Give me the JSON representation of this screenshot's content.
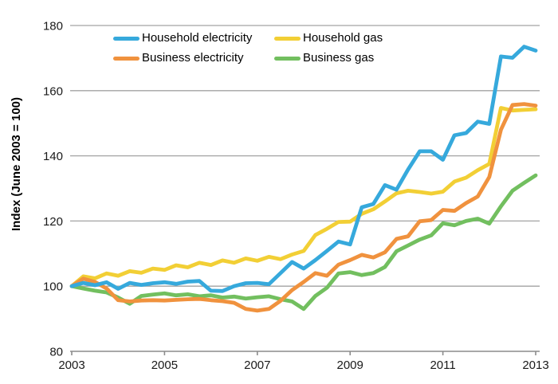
{
  "chart_data": {
    "type": "line",
    "title": "",
    "xlabel": "",
    "ylabel": "Index (June 2003 = 100)",
    "ylim": [
      80,
      180
    ],
    "y_ticks": [
      80,
      100,
      120,
      140,
      160,
      180
    ],
    "x_tick_labels": [
      "2003",
      "2005",
      "2007",
      "2009",
      "2011",
      "2013"
    ],
    "x_tick_years": [
      2003,
      2005,
      2007,
      2009,
      2011,
      2013
    ],
    "x_start_year": 2003,
    "points_per_year": 4,
    "grid": "horizontal",
    "legend_position": "top-left-two-columns",
    "colors": {
      "gridline": "#a3a3a3",
      "axis": "#8c8c8c",
      "text": "#1a1a1a"
    },
    "series": [
      {
        "name": "Household electricity",
        "color": "#36A9DC",
        "values": [
          100,
          101,
          100.3,
          101.2,
          99.2,
          101,
          100.4,
          100.9,
          101.2,
          100.7,
          101.4,
          101.6,
          98.6,
          98.5,
          100,
          100.9,
          101,
          100.6,
          104,
          107.4,
          105.4,
          108,
          110.8,
          113.7,
          112.8,
          124.2,
          125.2,
          131,
          129.6,
          135.8,
          141.4,
          141.4,
          138.8,
          146.3,
          147,
          150.5,
          149.8,
          170.5,
          170.1,
          173.5,
          172.3
        ]
      },
      {
        "name": "Household gas",
        "color": "#F2CF35",
        "values": [
          100,
          103,
          102.4,
          103.9,
          103.2,
          104.6,
          104.1,
          105.4,
          105,
          106.4,
          105.8,
          107.2,
          106.5,
          107.9,
          107.2,
          108.5,
          107.8,
          109,
          108.3,
          109.7,
          110.8,
          115.7,
          117.6,
          119.7,
          119.8,
          122.2,
          123.6,
          126,
          128.5,
          129.3,
          128.9,
          128.4,
          129,
          132.1,
          133.3,
          135.6,
          137.5,
          154.7,
          153.9,
          154.1,
          154.3
        ]
      },
      {
        "name": "Business electricity",
        "color": "#F0923E",
        "values": [
          100,
          102.3,
          101.3,
          99.3,
          95.7,
          95.3,
          95.6,
          95.7,
          95.6,
          95.8,
          96,
          96.1,
          95.7,
          95.4,
          94.9,
          93,
          92.5,
          93,
          95.5,
          98.8,
          101.3,
          104,
          103.2,
          106.6,
          108,
          109.6,
          108.8,
          110.4,
          114.5,
          115.3,
          119.9,
          120.3,
          123.4,
          123.1,
          125.5,
          127.5,
          133.5,
          148,
          155.6,
          155.9,
          155.4
        ]
      },
      {
        "name": "Business gas",
        "color": "#72BF5F",
        "values": [
          100,
          99.3,
          98.6,
          98.1,
          96.5,
          94.6,
          97,
          97.4,
          97.8,
          97.2,
          97.5,
          96.9,
          97.2,
          96.5,
          96.8,
          96.2,
          96.6,
          96.9,
          96,
          95.3,
          93,
          97,
          99.5,
          103.9,
          104.3,
          103.4,
          104,
          105.9,
          110.7,
          112.5,
          114.3,
          115.6,
          119.3,
          118.7,
          120,
          120.7,
          119.2,
          124.5,
          129.3,
          131.7,
          134
        ]
      }
    ]
  }
}
